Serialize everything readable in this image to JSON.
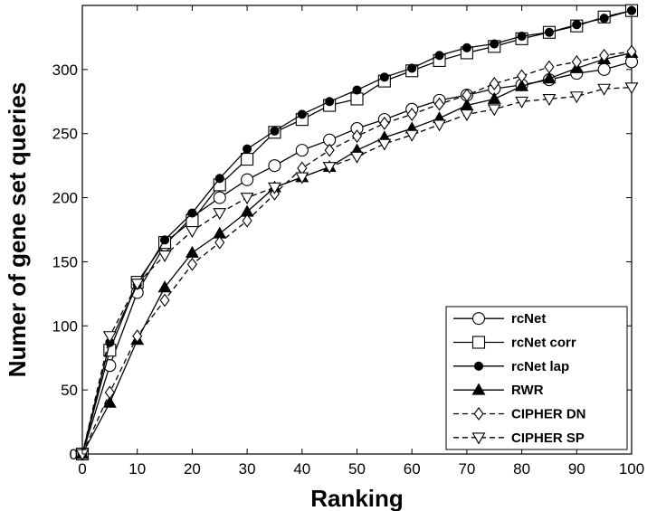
{
  "chart_data": {
    "type": "line",
    "title": "",
    "xlabel": "Ranking",
    "ylabel": "Numer of gene set queries",
    "xlim": [
      0,
      100
    ],
    "ylim": [
      0,
      350
    ],
    "xticks": [
      0,
      10,
      20,
      30,
      40,
      50,
      60,
      70,
      80,
      90,
      100
    ],
    "yticks": [
      0,
      50,
      100,
      150,
      200,
      250,
      300
    ],
    "grid": false,
    "legend_position": "bottom-right",
    "x": [
      0,
      5,
      10,
      15,
      20,
      25,
      30,
      35,
      40,
      45,
      50,
      55,
      60,
      65,
      70,
      75,
      80,
      85,
      90,
      95,
      100
    ],
    "series": [
      {
        "name": "rcNet",
        "marker": "circle-open",
        "dash": "solid",
        "values": [
          0,
          69,
          126,
          163,
          185,
          200,
          214,
          225,
          237,
          245,
          254,
          261,
          269,
          276,
          280,
          285,
          288,
          292,
          297,
          300,
          306
        ]
      },
      {
        "name": "rcNet corr",
        "marker": "square-open",
        "dash": "solid",
        "values": [
          0,
          81,
          134,
          165,
          182,
          210,
          230,
          251,
          261,
          272,
          277,
          291,
          299,
          307,
          313,
          318,
          324,
          329,
          334,
          341,
          346
        ]
      },
      {
        "name": "rcNet lap",
        "marker": "circle-filled",
        "dash": "solid",
        "values": [
          0,
          87,
          132,
          167,
          188,
          215,
          238,
          252,
          265,
          275,
          284,
          294,
          301,
          311,
          317,
          320,
          326,
          329,
          335,
          340,
          346
        ]
      },
      {
        "name": "RWR",
        "marker": "triangle-filled",
        "dash": "solid",
        "values": [
          0,
          40,
          89,
          130,
          157,
          172,
          189,
          208,
          216,
          224,
          237,
          247,
          254,
          262,
          272,
          277,
          287,
          293,
          301,
          308,
          313
        ]
      },
      {
        "name": "CIPHER DN",
        "marker": "diamond-open",
        "dash": "dashed",
        "values": [
          0,
          48,
          92,
          120,
          148,
          165,
          182,
          203,
          223,
          237,
          248,
          258,
          265,
          273,
          280,
          289,
          295,
          302,
          306,
          311,
          314
        ]
      },
      {
        "name": "CIPHER SP",
        "marker": "triangle-down-open",
        "dash": "dashed",
        "values": [
          0,
          92,
          133,
          155,
          174,
          188,
          200,
          208,
          216,
          224,
          232,
          242,
          249,
          257,
          265,
          269,
          275,
          277,
          279,
          285,
          286
        ]
      }
    ]
  }
}
